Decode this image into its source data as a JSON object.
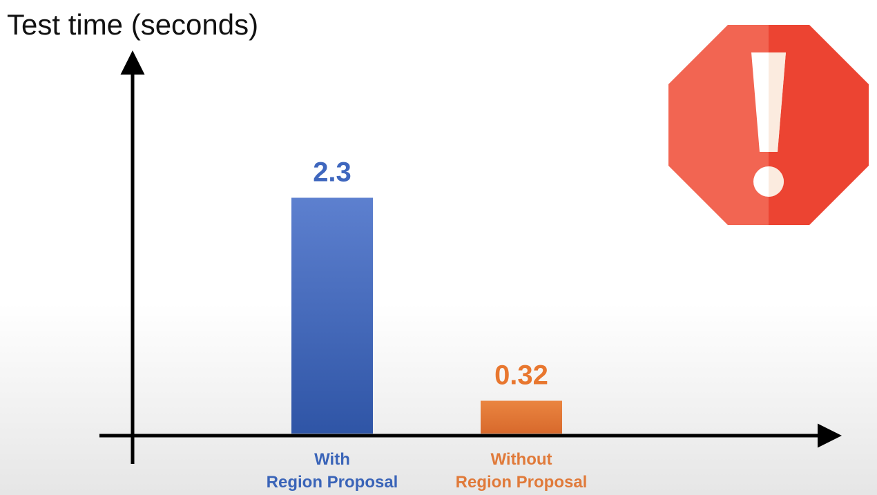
{
  "chart_data": {
    "type": "bar",
    "title": "Test time (seconds)",
    "xlabel": "",
    "ylabel": "",
    "categories": [
      {
        "lines": [
          "With",
          "Region Proposal"
        ],
        "color": "#3a64b8"
      },
      {
        "lines": [
          "Without",
          "Region Proposal"
        ],
        "color": "#e07a3a"
      }
    ],
    "values": [
      2.3,
      0.32
    ],
    "data_labels": [
      "2.3",
      "0.32"
    ],
    "bar_colors_top": [
      "#5d80cf",
      "#ea8540"
    ],
    "bar_colors_bottom": [
      "#2f55a6",
      "#d8692c"
    ],
    "label_colors": [
      "#3f67be",
      "#e8772f"
    ],
    "ylim": [
      0,
      3.2
    ],
    "grid": false,
    "legend": "none"
  },
  "warning_icon": {
    "name": "stop-sign-exclamation-icon",
    "color_left": "#f26552",
    "color_right": "#ec4432",
    "mark_color": "#ffffff"
  }
}
